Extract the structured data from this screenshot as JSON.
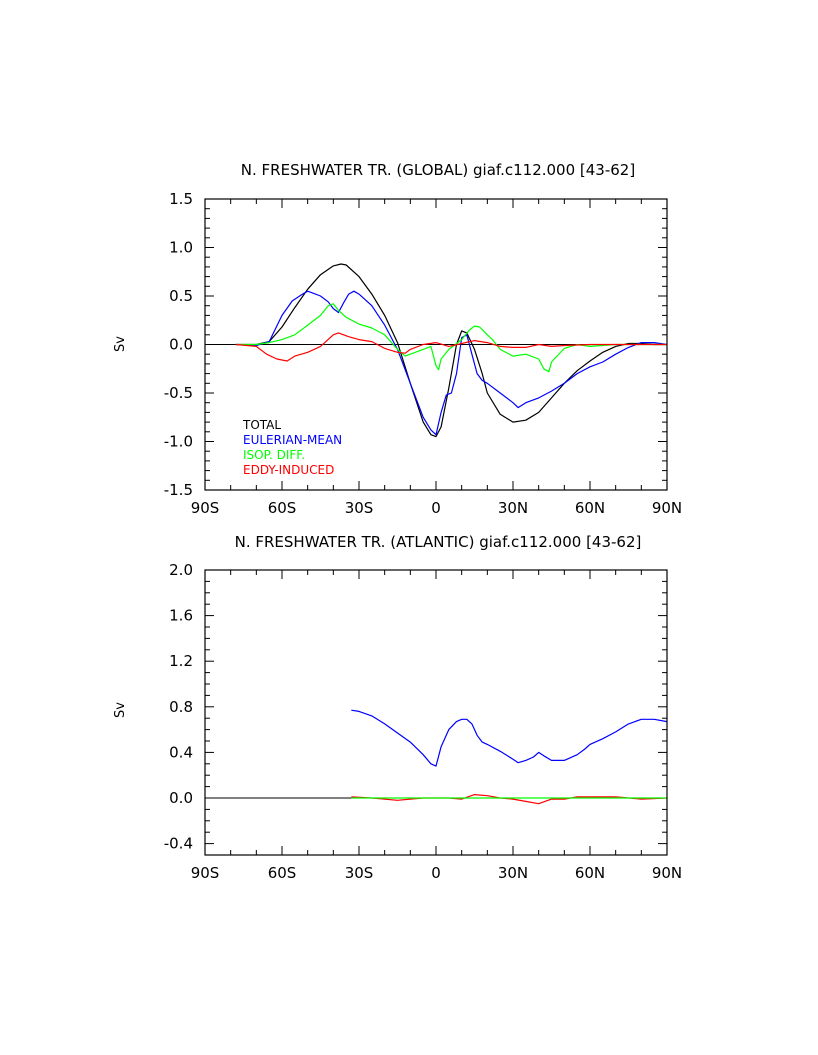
{
  "chart_data": [
    {
      "type": "line",
      "title": "N. FRESHWATER TR. (GLOBAL) giaf.c112.000 [43-62]",
      "ylabel": "Sv",
      "xlabel": "",
      "xlim": [
        -90,
        90
      ],
      "ylim": [
        -1.5,
        1.5
      ],
      "xticks": [
        -90,
        -60,
        -30,
        0,
        30,
        60,
        90
      ],
      "xtick_labels": [
        "90S",
        "60S",
        "30S",
        "0",
        "30N",
        "60N",
        "90N"
      ],
      "yticks": [
        -1.5,
        -1.0,
        -0.5,
        0.0,
        0.5,
        1.0,
        1.5
      ],
      "ytick_labels": [
        "-1.5",
        "-1.0",
        "-0.5",
        "0.0",
        "0.5",
        "1.0",
        "1.5"
      ],
      "legend_position": "bottom-left",
      "series": [
        {
          "name": "TOTAL",
          "color": "#000000",
          "x": [
            -78,
            -70,
            -65,
            -60,
            -55,
            -50,
            -45,
            -40,
            -37,
            -35,
            -30,
            -25,
            -20,
            -15,
            -10,
            -5,
            -2,
            0,
            2,
            5,
            8,
            10,
            12,
            15,
            18,
            20,
            25,
            30,
            35,
            40,
            45,
            50,
            55,
            60,
            65,
            70,
            75,
            80,
            85,
            90
          ],
          "y": [
            0,
            0,
            0.03,
            0.18,
            0.38,
            0.57,
            0.72,
            0.81,
            0.83,
            0.82,
            0.7,
            0.52,
            0.3,
            0.02,
            -0.4,
            -0.8,
            -0.93,
            -0.95,
            -0.85,
            -0.45,
            0,
            0.14,
            0.12,
            -0.05,
            -0.3,
            -0.5,
            -0.72,
            -0.8,
            -0.78,
            -0.7,
            -0.55,
            -0.4,
            -0.27,
            -0.17,
            -0.08,
            -0.02,
            0.01,
            0.01,
            0,
            0
          ]
        },
        {
          "name": "EULERIAN-MEAN",
          "color": "#0000ff",
          "x": [
            -78,
            -70,
            -65,
            -60,
            -56,
            -52,
            -50,
            -48,
            -45,
            -42,
            -40,
            -38,
            -36,
            -34,
            -32,
            -30,
            -25,
            -20,
            -15,
            -10,
            -5,
            -2,
            0,
            2,
            4,
            6,
            8,
            10,
            12,
            14,
            16,
            18,
            20,
            25,
            30,
            32,
            35,
            40,
            45,
            50,
            55,
            60,
            65,
            70,
            75,
            80,
            85,
            90
          ],
          "y": [
            0,
            -0.01,
            0.03,
            0.3,
            0.45,
            0.52,
            0.55,
            0.53,
            0.5,
            0.44,
            0.37,
            0.33,
            0.43,
            0.52,
            0.55,
            0.52,
            0.4,
            0.2,
            -0.05,
            -0.4,
            -0.75,
            -0.88,
            -0.93,
            -0.7,
            -0.52,
            -0.5,
            -0.3,
            0.07,
            0.1,
            -0.1,
            -0.3,
            -0.37,
            -0.4,
            -0.5,
            -0.6,
            -0.65,
            -0.6,
            -0.55,
            -0.48,
            -0.4,
            -0.3,
            -0.23,
            -0.18,
            -0.1,
            -0.03,
            0.02,
            0.02,
            0
          ]
        },
        {
          "name": "ISOP. DIFF.",
          "color": "#00ff00",
          "x": [
            -78,
            -70,
            -65,
            -60,
            -55,
            -50,
            -45,
            -42,
            -40,
            -38,
            -35,
            -30,
            -25,
            -20,
            -15,
            -12,
            -10,
            -5,
            -2,
            0,
            1,
            2,
            5,
            10,
            13,
            15,
            17,
            20,
            22,
            25,
            30,
            35,
            40,
            42,
            44,
            45,
            50,
            55,
            60,
            70,
            80,
            90
          ],
          "y": [
            0,
            0,
            0.02,
            0.05,
            0.1,
            0.2,
            0.3,
            0.4,
            0.42,
            0.35,
            0.28,
            0.21,
            0.17,
            0.1,
            -0.05,
            -0.12,
            -0.1,
            -0.05,
            -0.02,
            -0.22,
            -0.26,
            -0.15,
            -0.05,
            0.05,
            0.15,
            0.19,
            0.18,
            0.1,
            0.05,
            -0.05,
            -0.12,
            -0.1,
            -0.15,
            -0.25,
            -0.28,
            -0.18,
            -0.04,
            0,
            -0.02,
            0,
            0,
            0
          ]
        },
        {
          "name": "EDDY-INDUCED",
          "color": "#ff0000",
          "x": [
            -78,
            -70,
            -66,
            -62,
            -58,
            -55,
            -50,
            -45,
            -40,
            -38,
            -36,
            -34,
            -30,
            -25,
            -20,
            -15,
            -12,
            -10,
            -5,
            0,
            5,
            10,
            15,
            20,
            25,
            30,
            35,
            40,
            45,
            50,
            60,
            70,
            80,
            90
          ],
          "y": [
            0,
            -0.02,
            -0.1,
            -0.15,
            -0.17,
            -0.12,
            -0.08,
            -0.02,
            0.1,
            0.12,
            0.1,
            0.08,
            0.05,
            0.03,
            -0.04,
            -0.08,
            -0.09,
            -0.05,
            0,
            0.02,
            -0.02,
            0.01,
            0.04,
            0.02,
            -0.02,
            -0.03,
            -0.03,
            0,
            -0.02,
            -0.01,
            0,
            0,
            0,
            0
          ]
        }
      ]
    },
    {
      "type": "line",
      "title": "N. FRESHWATER TR. (ATLANTIC) giaf.c112.000 [43-62]",
      "ylabel": "Sv",
      "xlabel": "",
      "xlim": [
        -90,
        90
      ],
      "ylim": [
        -0.5,
        2.0
      ],
      "xticks": [
        -90,
        -60,
        -30,
        0,
        30,
        60,
        90
      ],
      "xtick_labels": [
        "90S",
        "60S",
        "30S",
        "0",
        "30N",
        "60N",
        "90N"
      ],
      "yticks": [
        -0.4,
        0.0,
        0.4,
        0.8,
        1.2,
        1.6,
        2.0
      ],
      "ytick_labels": [
        "-0.4",
        "0.0",
        "0.4",
        "0.8",
        "1.2",
        "1.6",
        "2.0"
      ],
      "series": [
        {
          "name": "EULERIAN-MEAN",
          "color": "#0000ff",
          "x": [
            -33,
            -30,
            -25,
            -20,
            -15,
            -10,
            -5,
            -2,
            0,
            2,
            5,
            8,
            10,
            12,
            14,
            16,
            18,
            20,
            25,
            30,
            32,
            35,
            38,
            40,
            42,
            45,
            48,
            50,
            55,
            58,
            60,
            65,
            70,
            75,
            80,
            85,
            90
          ],
          "y": [
            0.77,
            0.76,
            0.72,
            0.65,
            0.57,
            0.49,
            0.38,
            0.3,
            0.28,
            0.45,
            0.6,
            0.67,
            0.69,
            0.69,
            0.65,
            0.55,
            0.49,
            0.47,
            0.41,
            0.34,
            0.31,
            0.33,
            0.36,
            0.4,
            0.37,
            0.33,
            0.33,
            0.33,
            0.38,
            0.43,
            0.47,
            0.52,
            0.58,
            0.65,
            0.69,
            0.69,
            0.67
          ]
        },
        {
          "name": "EDDY-INDUCED",
          "color": "#ff0000",
          "x": [
            -33,
            -25,
            -20,
            -15,
            -10,
            -5,
            0,
            5,
            10,
            15,
            20,
            25,
            30,
            35,
            40,
            45,
            50,
            55,
            60,
            70,
            80,
            90
          ],
          "y": [
            0.01,
            0,
            -0.01,
            -0.02,
            -0.01,
            0,
            0,
            0,
            -0.01,
            0.03,
            0.02,
            0,
            -0.01,
            -0.03,
            -0.05,
            -0.01,
            -0.01,
            0.01,
            0.01,
            0.01,
            -0.01,
            0
          ]
        },
        {
          "name": "ISOP. DIFF.",
          "color": "#00ff00",
          "x": [
            -33,
            -20,
            -10,
            0,
            10,
            20,
            30,
            40,
            50,
            60,
            70,
            80,
            90
          ],
          "y": [
            0,
            0,
            0,
            0,
            0,
            0,
            0,
            0,
            0,
            0,
            0,
            0,
            0
          ]
        }
      ]
    }
  ]
}
